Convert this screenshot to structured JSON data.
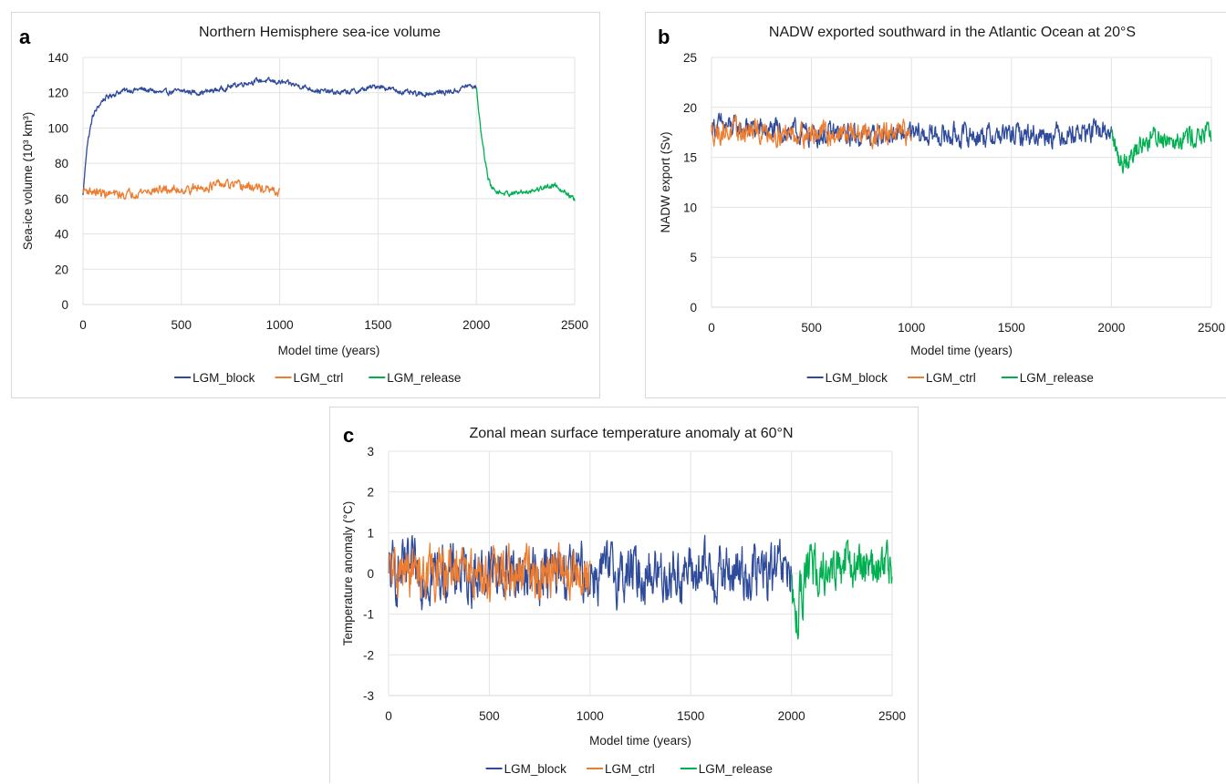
{
  "panels": [
    {
      "letter": "a"
    },
    {
      "letter": "b"
    },
    {
      "letter": "c"
    }
  ],
  "chart_data": [
    {
      "type": "line",
      "title": "Northern Hemisphere sea-ice volume",
      "xlabel": "Model time (years)",
      "ylabel": "Sea-ice volume (10³ km³)",
      "xlim": [
        0,
        2500
      ],
      "ylim": [
        0,
        140
      ],
      "xticks": [
        0,
        500,
        1000,
        1500,
        2000,
        2500
      ],
      "yticks": [
        0,
        20,
        40,
        60,
        80,
        100,
        120,
        140
      ],
      "grid": true,
      "legend": "bottom",
      "series": [
        {
          "name": "LGM_block",
          "color": "#2e4a9a",
          "noise": 1.2,
          "x": [
            0,
            20,
            50,
            100,
            150,
            200,
            300,
            400,
            500,
            600,
            700,
            800,
            900,
            1000,
            1100,
            1200,
            1300,
            1400,
            1500,
            1600,
            1700,
            1800,
            1900,
            1950,
            2000
          ],
          "y": [
            62,
            90,
            107,
            116,
            119,
            121,
            122,
            120,
            121,
            120,
            122,
            125,
            127,
            126,
            124,
            121,
            120,
            121,
            124,
            121,
            119,
            120,
            121,
            124,
            123
          ]
        },
        {
          "name": "LGM_ctrl",
          "color": "#ed7d31",
          "noise": 2.0,
          "x": [
            0,
            100,
            200,
            300,
            400,
            500,
            600,
            700,
            800,
            900,
            1000
          ],
          "y": [
            65,
            63,
            62,
            64,
            65,
            65,
            66,
            68,
            67,
            66,
            63
          ]
        },
        {
          "name": "LGM_release",
          "color": "#00b050",
          "noise": 1.2,
          "x": [
            2000,
            2020,
            2040,
            2060,
            2080,
            2100,
            2150,
            2200,
            2300,
            2400,
            2450,
            2500
          ],
          "y": [
            123,
            100,
            85,
            72,
            66,
            64,
            63,
            63,
            65,
            68,
            64,
            59
          ]
        }
      ]
    },
    {
      "type": "line",
      "title": "NADW exported southward in the Atlantic Ocean at 20°S",
      "xlabel": "Model time (years)",
      "ylabel": "NADW export (Sv)",
      "xlim": [
        0,
        2500
      ],
      "ylim": [
        0,
        25
      ],
      "xticks": [
        0,
        500,
        1000,
        1500,
        2000,
        2500
      ],
      "yticks": [
        0,
        5,
        10,
        15,
        20,
        25
      ],
      "grid": true,
      "legend": "bottom",
      "series": [
        {
          "name": "LGM_block",
          "color": "#2e4a9a",
          "noise": 0.9,
          "x": [
            0,
            100,
            500,
            1000,
            1500,
            2000
          ],
          "y": [
            18.2,
            18.0,
            17.3,
            17.2,
            17.2,
            17.6
          ]
        },
        {
          "name": "LGM_ctrl",
          "color": "#ed7d31",
          "noise": 0.9,
          "x": [
            0,
            500,
            1000
          ],
          "y": [
            17.6,
            17.4,
            17.3
          ]
        },
        {
          "name": "LGM_release",
          "color": "#00b050",
          "noise": 0.9,
          "x": [
            2000,
            2030,
            2060,
            2100,
            2200,
            2500
          ],
          "y": [
            17.5,
            15.0,
            14.5,
            15.5,
            17.0,
            17.2
          ]
        }
      ]
    },
    {
      "type": "line",
      "title": "Zonal mean surface temperature anomaly at 60°N",
      "xlabel": "Model time (years)",
      "ylabel": "Temperature anomaly (°C)",
      "xlim": [
        0,
        2500
      ],
      "ylim": [
        -3,
        3
      ],
      "xticks": [
        0,
        500,
        1000,
        1500,
        2000,
        2500
      ],
      "yticks": [
        -3,
        -2,
        -1,
        0,
        1,
        2,
        3
      ],
      "grid": true,
      "legend": "bottom",
      "series": [
        {
          "name": "LGM_block",
          "color": "#2e4a9a",
          "noise": 0.55,
          "x": [
            0,
            1000,
            2000
          ],
          "y": [
            0.0,
            0.0,
            0.0
          ]
        },
        {
          "name": "LGM_ctrl",
          "color": "#ed7d31",
          "noise": 0.5,
          "x": [
            0,
            1000
          ],
          "y": [
            0.0,
            0.0
          ]
        },
        {
          "name": "LGM_release",
          "color": "#00b050",
          "noise": 0.5,
          "x": [
            2000,
            2020,
            2040,
            2080,
            2150,
            2500
          ],
          "y": [
            0.0,
            -1.3,
            -0.7,
            0.0,
            0.2,
            0.1
          ]
        }
      ]
    }
  ]
}
